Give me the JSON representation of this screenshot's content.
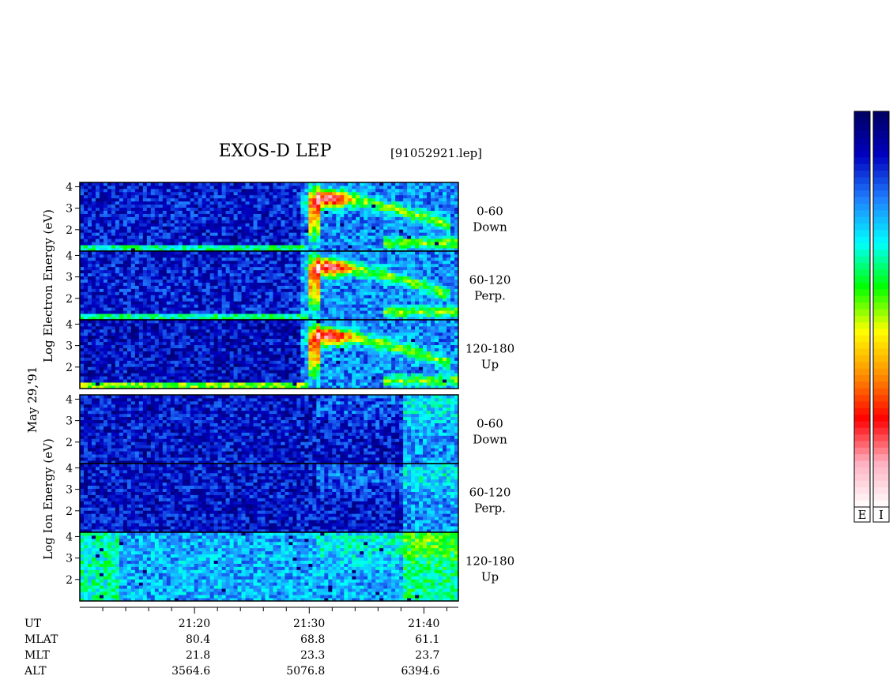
{
  "chart_data": {
    "type": "heatmap",
    "title": "EXOS-D LEP",
    "file_label": "[91052921.lep]",
    "date_label": "May 29,'91",
    "electron_group": {
      "ylabel": "Log Electron Energy (eV)"
    },
    "ion_group": {
      "ylabel": "Log Ion Energy (eV)"
    },
    "y_ticks": [
      "4",
      "3",
      "2"
    ],
    "ylim": [
      1,
      4.2
    ],
    "x_ticks": [
      "21:20",
      "21:30",
      "21:40"
    ],
    "panels": [
      {
        "species": "electron",
        "pitch_range": "0-60",
        "direction": "Down"
      },
      {
        "species": "electron",
        "pitch_range": "60-120",
        "direction": "Perp."
      },
      {
        "species": "electron",
        "pitch_range": "120-180",
        "direction": "Up"
      },
      {
        "species": "ion",
        "pitch_range": "0-60",
        "direction": "Down"
      },
      {
        "species": "ion",
        "pitch_range": "60-120",
        "direction": "Perp."
      },
      {
        "species": "ion",
        "pitch_range": "120-180",
        "direction": "Up"
      }
    ],
    "ephemeris": {
      "rows": [
        {
          "name": "UT",
          "values": [
            "21:20",
            "21:30",
            "21:40"
          ]
        },
        {
          "name": "MLAT",
          "values": [
            "80.4",
            "68.8",
            "61.1"
          ]
        },
        {
          "name": "MLT",
          "values": [
            "21.8",
            "23.3",
            "23.7"
          ]
        },
        {
          "name": "ALT",
          "values": [
            "3564.6",
            "5076.8",
            "6394.6"
          ]
        }
      ]
    },
    "colorbars": [
      {
        "label": "E",
        "species": "electron"
      },
      {
        "label": "I",
        "species": "ion"
      }
    ],
    "colormap": [
      "#ffffff",
      "#ffb0c0",
      "#ff0000",
      "#ff9000",
      "#ffff00",
      "#00ff00",
      "#00ffff",
      "#2080ff",
      "#0000c0",
      "#000060"
    ]
  }
}
